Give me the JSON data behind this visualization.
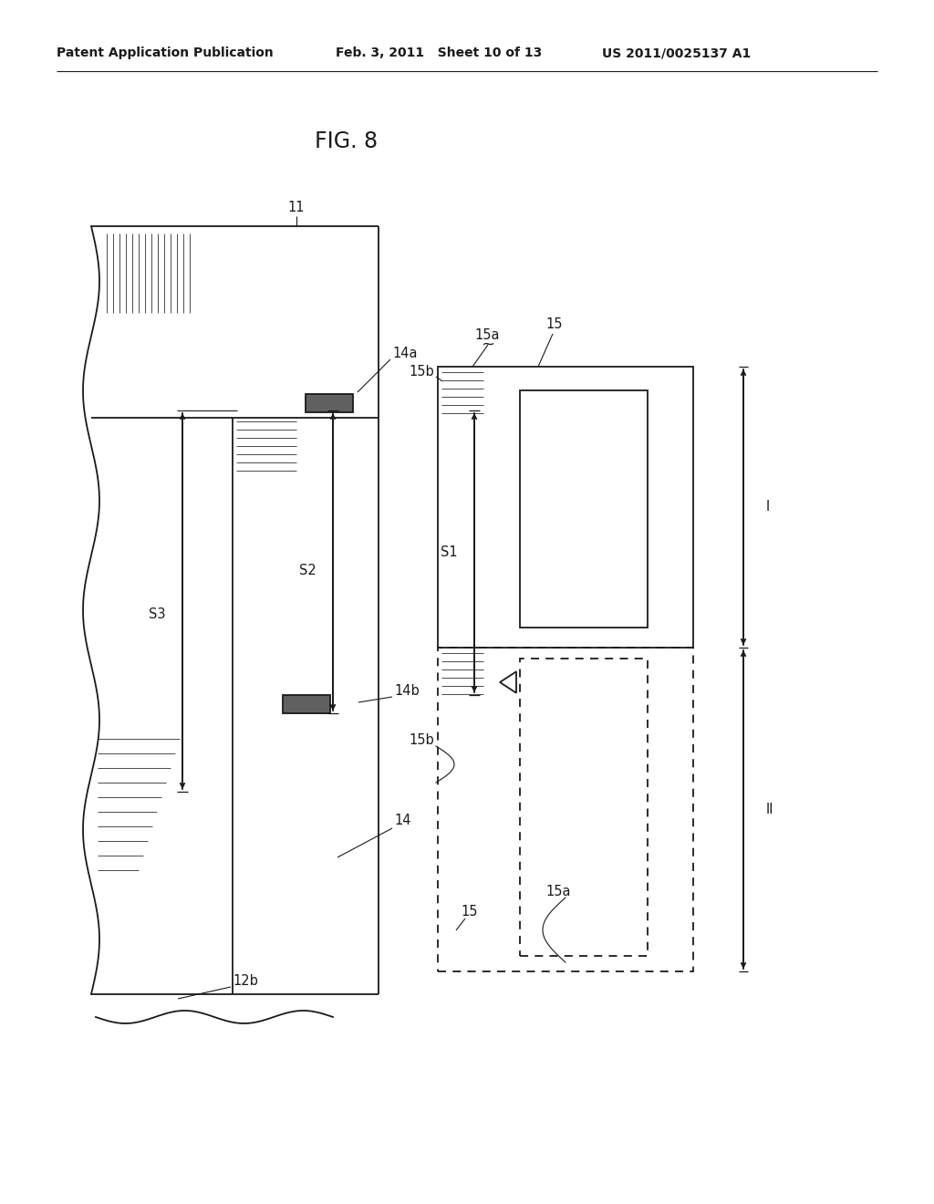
{
  "title": "FIG. 8",
  "header_left": "Patent Application Publication",
  "header_mid": "Feb. 3, 2011   Sheet 10 of 13",
  "header_right": "US 2011/0025137 A1",
  "bg_color": "#ffffff",
  "line_color": "#1a1a1a",
  "label_fontsize": 10.5,
  "header_fontsize": 10,
  "title_fontsize": 17,
  "lw": 1.3
}
